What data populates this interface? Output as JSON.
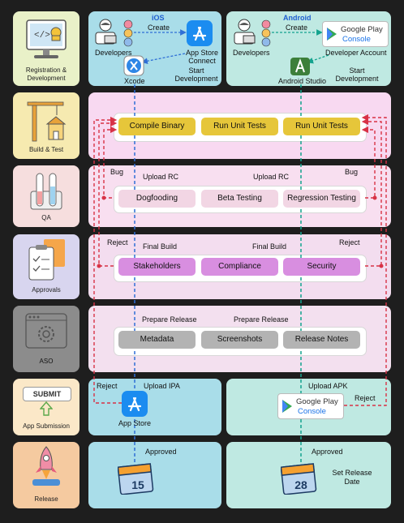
{
  "colors": {
    "ios_panel": "#a9dde9",
    "android_panel": "#bfe9e2",
    "build_panel": "#f8d9f1",
    "qa_panel": "#f8dff0",
    "approval_panel": "#f3ddef",
    "aso_panel": "#f3e0ef",
    "flow_blue": "#2f6fd6",
    "flow_green": "#13a38e",
    "reject_red": "#d83246"
  },
  "stages": [
    {
      "label": "Registration & Development",
      "icon": "monitor-icon"
    },
    {
      "label": "Build & Test",
      "icon": "crane-icon"
    },
    {
      "label": "QA",
      "icon": "test-tubes-icon"
    },
    {
      "label": "Approvals",
      "icon": "clipboard-icon"
    },
    {
      "label": "ASO",
      "icon": "gear-screen-icon"
    },
    {
      "label": "App Submission",
      "icon": "submit-icon",
      "submit_text": "SUBMIT"
    },
    {
      "label": "Release",
      "icon": "rocket-icon"
    }
  ],
  "ios": {
    "title": "iOS",
    "create": "Create",
    "developers": "Developers",
    "app_store_connect": "App Store Connect",
    "xcode": "Xcode",
    "start_development": "Start Development",
    "app_store": "App Store"
  },
  "android": {
    "title": "Android",
    "create": "Create",
    "developers": "Developers",
    "google_play": "Google Play",
    "console": "Console",
    "developer_account": "Developer Account",
    "android_studio": "Android Studio",
    "start_development": "Start Development"
  },
  "build": {
    "compile": "Compile Binary",
    "unit_tests_1": "Run Unit Tests",
    "unit_tests_2": "Run Unit Tests"
  },
  "qa": {
    "bug_left": "Bug",
    "bug_right": "Bug",
    "upload_left": "Upload RC",
    "upload_right": "Upload RC",
    "dogfooding": "Dogfooding",
    "beta": "Beta Testing",
    "regression": "Regression Testing"
  },
  "approvals": {
    "reject_left": "Reject",
    "reject_right": "Reject",
    "final_left": "Final Build",
    "final_right": "Final Build",
    "stakeholders": "Stakeholders",
    "compliance": "Compliance",
    "security": "Security"
  },
  "aso": {
    "prepare_left": "Prepare Release",
    "prepare_right": "Prepare Release",
    "metadata": "Metadata",
    "screenshots": "Screenshots",
    "release_notes": "Release Notes"
  },
  "submission": {
    "reject_left": "Reject",
    "upload_ipa": "Upload IPA",
    "upload_apk": "Upload APK",
    "reject_right": "Reject"
  },
  "release": {
    "approved_left": "Approved",
    "approved_right": "Approved",
    "cal_left": "15",
    "cal_right": "28",
    "set_release_date": "Set Release Date"
  }
}
